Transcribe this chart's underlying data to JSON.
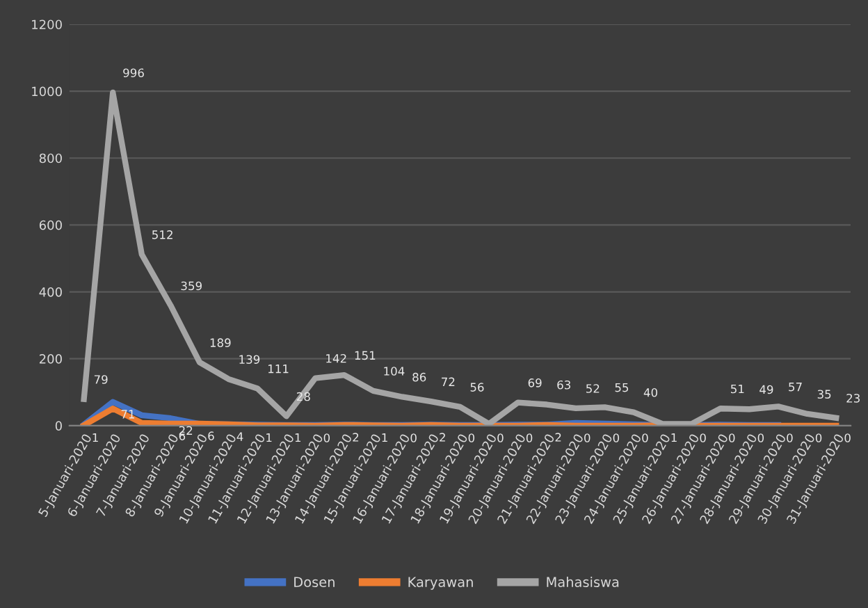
{
  "chart_data": {
    "type": "line",
    "categories": [
      "5-Januari-2020",
      "6-Januari-2020",
      "7-Januari-2020",
      "8-Januari-2020",
      "9-Januari-2020",
      "10-Januari-2020",
      "11-Januari-2020",
      "12-Januari-2020",
      "13-Januari-2020",
      "14-Januari-2020",
      "15-Januari-2020",
      "16-Januari-2020",
      "17-Januari-2020",
      "18-Januari-2020",
      "19-Januari-2020",
      "20-Januari-2020",
      "21-Januari-2020",
      "22-Januari-2020",
      "23-Januari-2020",
      "24-Januari-2020",
      "25-Januari-2020",
      "26-Januari-2020",
      "27-Januari-2020",
      "28-Januari-2020",
      "29-Januari-2020",
      "30-Januari-2020",
      "31-Januari-2020"
    ],
    "series": [
      {
        "name": "Dosen",
        "color": "#4472c4",
        "values": [
          3,
          71,
          31,
          22,
          5,
          4,
          3,
          2,
          2,
          3,
          2,
          2,
          3,
          2,
          2,
          3,
          3,
          8,
          6,
          4,
          2,
          2,
          3,
          2,
          2,
          null,
          null
        ],
        "value_labels": [
          null,
          "71",
          null,
          "22",
          null,
          null,
          null,
          null,
          null,
          null,
          null,
          null,
          null,
          null,
          null,
          null,
          null,
          null,
          null,
          null,
          null,
          null,
          null,
          null,
          null,
          null,
          null
        ]
      },
      {
        "name": "Karyawan",
        "color": "#ed7d31",
        "values": [
          1,
          51,
          8,
          6,
          6,
          4,
          1,
          1,
          0,
          2,
          1,
          0,
          2,
          0,
          0,
          0,
          2,
          0,
          0,
          0,
          1,
          0,
          0,
          0,
          0,
          0,
          0
        ],
        "value_labels": [
          "1",
          null,
          null,
          "6",
          "6",
          "4",
          "1",
          "1",
          "0",
          "2",
          "1",
          "0",
          "2",
          "0",
          "0",
          "0",
          "2",
          "0",
          "0",
          "0",
          "1",
          "0",
          "0",
          "0",
          "0",
          "0",
          "0"
        ]
      },
      {
        "name": "Mahasiswa",
        "color": "#a5a5a5",
        "values": [
          79,
          996,
          512,
          359,
          189,
          139,
          111,
          28,
          142,
          151,
          104,
          86,
          72,
          56,
          5,
          69,
          63,
          52,
          55,
          40,
          5,
          5,
          51,
          49,
          57,
          35,
          23
        ],
        "value_labels": [
          "79",
          "996",
          "512",
          "359",
          "189",
          "139",
          "111",
          "28",
          "142",
          "151",
          "104",
          "86",
          "72",
          "56",
          null,
          "69",
          "63",
          "52",
          "55",
          "40",
          null,
          null,
          "51",
          "49",
          "57",
          "35",
          "23"
        ]
      }
    ],
    "ylim": [
      0,
      1200
    ],
    "yticks": [
      0,
      200,
      400,
      600,
      800,
      1000,
      1200
    ],
    "grid": "y",
    "legend": "bottom",
    "marker": "none",
    "line_style": "solid"
  }
}
